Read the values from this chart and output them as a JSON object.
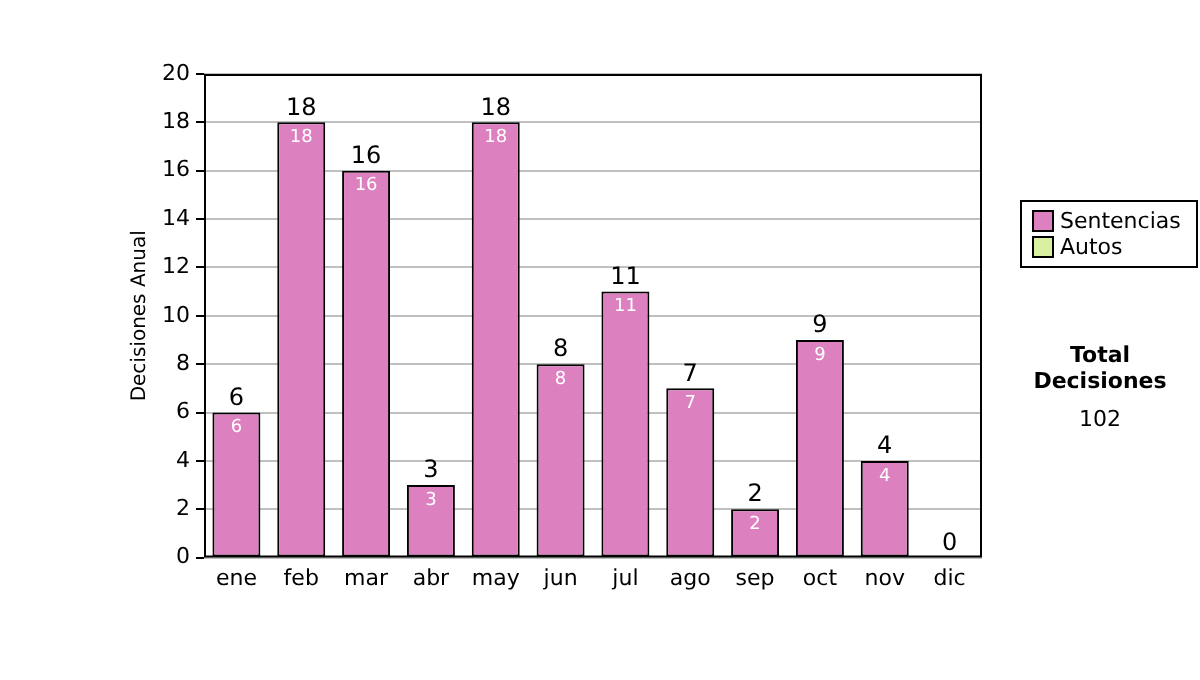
{
  "chart_data": {
    "type": "bar",
    "stacked": true,
    "ylabel": "Decisiones Anual",
    "categories": [
      "ene",
      "feb",
      "mar",
      "abr",
      "may",
      "jun",
      "jul",
      "ago",
      "sep",
      "oct",
      "nov",
      "dic"
    ],
    "series": [
      {
        "name": "Sentencias",
        "color": "#dd80c0",
        "values": [
          6,
          18,
          16,
          3,
          18,
          8,
          11,
          7,
          2,
          9,
          4,
          0
        ],
        "value_labels": [
          "6",
          "18",
          "16",
          "3",
          "18",
          "8",
          "11",
          "7",
          "2",
          "9",
          "4",
          null
        ]
      },
      {
        "name": "Autos",
        "color": "#d8f0a0",
        "values": [
          0,
          0,
          0,
          0,
          0,
          0,
          0,
          0,
          0,
          0,
          0,
          0
        ]
      }
    ],
    "totals": [
      "6",
      "18",
      "16",
      "3",
      "18",
      "8",
      "11",
      "7",
      "2",
      "9",
      "4",
      "0"
    ],
    "ylim": [
      0,
      20
    ],
    "yticks": [
      0,
      2,
      4,
      6,
      8,
      10,
      12,
      14,
      16,
      18,
      20
    ],
    "grid": "y",
    "legend": "right",
    "annotations": [
      "Total Decisiones",
      "102"
    ]
  }
}
